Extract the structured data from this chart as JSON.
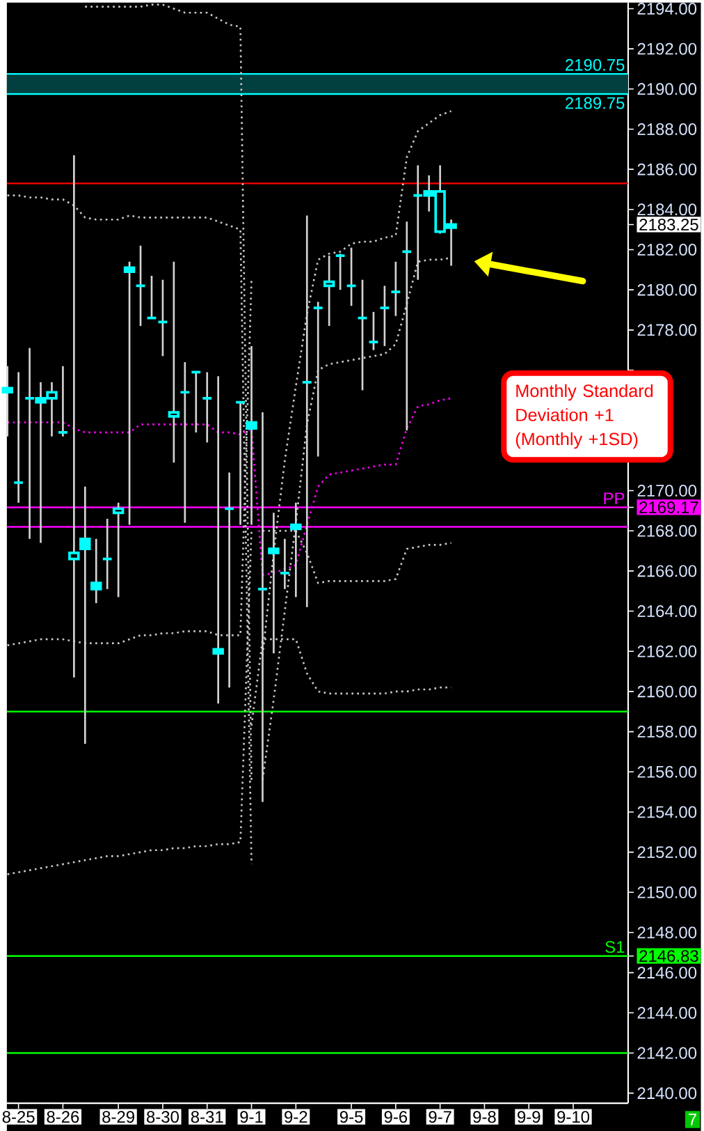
{
  "chart_data": {
    "type": "candlestick",
    "categories": [
      null,
      "8-25",
      null,
      null,
      null,
      "8-26",
      null,
      null,
      null,
      null,
      "8-29",
      null,
      null,
      null,
      "8-30",
      null,
      null,
      null,
      "8-31",
      null,
      null,
      null,
      "9-1",
      null,
      null,
      null,
      "9-2",
      null,
      null,
      null,
      null,
      "9-5",
      null,
      null,
      null,
      "9-6",
      null,
      null,
      null,
      "9-7",
      null,
      null,
      null,
      "9-8",
      null,
      null,
      null,
      "9-9",
      null,
      null,
      null,
      "9-10",
      null,
      null,
      null,
      null
    ],
    "ylim": [
      2139.5,
      2194.3
    ],
    "yticks": [
      {
        "value": 2140,
        "label": "2140.00"
      },
      {
        "value": 2142,
        "label": "2142.00"
      },
      {
        "value": 2144,
        "label": "2144.00"
      },
      {
        "value": 2146,
        "label": "2146.00"
      },
      {
        "value": 2146.83,
        "label": "2146.83"
      },
      {
        "value": 2148,
        "label": "2148.00"
      },
      {
        "value": 2150,
        "label": "2150.00"
      },
      {
        "value": 2152,
        "label": "2152.00"
      },
      {
        "value": 2154,
        "label": "2154.00"
      },
      {
        "value": 2156,
        "label": "2156.00"
      },
      {
        "value": 2158,
        "label": "2158.00"
      },
      {
        "value": 2160,
        "label": "2160.00"
      },
      {
        "value": 2162,
        "label": "2162.00"
      },
      {
        "value": 2164,
        "label": "2164.00"
      },
      {
        "value": 2166,
        "label": "2166.00"
      },
      {
        "value": 2168,
        "label": "2168.00"
      },
      {
        "value": 2169.17,
        "label": "2169.17"
      },
      {
        "value": 2170,
        "label": "2170.00"
      },
      {
        "value": 2172,
        "label": null
      },
      {
        "value": 2174,
        "label": null
      },
      {
        "value": 2176,
        "label": null
      },
      {
        "value": 2178,
        "label": "2178.00"
      },
      {
        "value": 2180,
        "label": "2180.00"
      },
      {
        "value": 2182,
        "label": "2182.00"
      },
      {
        "value": 2183.25,
        "label": "2183.25"
      },
      {
        "value": 2184,
        "label": "2184.00"
      },
      {
        "value": 2186,
        "label": "2186.00"
      },
      {
        "value": 2188,
        "label": "2188.00"
      },
      {
        "value": 2190,
        "label": "2190.00"
      },
      {
        "value": 2192,
        "label": "2192.00"
      },
      {
        "value": 2194,
        "label": "2194.00"
      }
    ],
    "series": [
      {
        "type": "line",
        "color": "#c8c8c8",
        "line_style": "dotted",
        "values": [
          null,
          null,
          null,
          null,
          null,
          null,
          null,
          2194.1,
          2194.1,
          2194.1,
          2194.1,
          2194.1,
          2194.1,
          2194.2,
          2194.2,
          2194.0,
          2193.8,
          2193.8,
          2193.8,
          2193.5,
          2193.2,
          2193.1,
          2155.6,
          null,
          null,
          null,
          null,
          null,
          null,
          null,
          null,
          null,
          null,
          null,
          null,
          null,
          null,
          null,
          null,
          null,
          null,
          null,
          null,
          null,
          null,
          null,
          null,
          null,
          null,
          null,
          null,
          null,
          null,
          null,
          null,
          null
        ]
      },
      {
        "type": "line",
        "color": "#c8c8c8",
        "line_style": "dotted",
        "values": [
          2184.7,
          2184.7,
          2184.6,
          2184.6,
          2184.5,
          2184.5,
          2184.2,
          2183.6,
          2183.5,
          2183.5,
          2183.5,
          2183.7,
          2183.6,
          2183.6,
          2183.6,
          2183.6,
          2183.6,
          2183.6,
          2183.6,
          2183.4,
          2183.2,
          2183.0,
          2151.4,
          null,
          null,
          null,
          null,
          null,
          null,
          null,
          null,
          null,
          null,
          null,
          null,
          null,
          null,
          null,
          null,
          null,
          null,
          null,
          null,
          null,
          null,
          null,
          null,
          null,
          null,
          null,
          null,
          null,
          null,
          null,
          null,
          null
        ]
      },
      {
        "type": "line",
        "color": "#c8c8c8",
        "line_style": "dotted",
        "values": [
          2162.3,
          2162.4,
          2162.5,
          2162.6,
          2162.6,
          2162.6,
          2162.5,
          2162.4,
          2162.4,
          2162.4,
          2162.4,
          2162.6,
          2162.8,
          2162.8,
          2162.9,
          2162.9,
          2163.0,
          2163.0,
          2163.0,
          2162.8,
          2162.8,
          2162.8,
          2180.5,
          null,
          null,
          null,
          null,
          null,
          null,
          null,
          null,
          null,
          null,
          null,
          null,
          null,
          null,
          null,
          null,
          null,
          null,
          null,
          null,
          null,
          null,
          null,
          null,
          null,
          null,
          null,
          null,
          null,
          null,
          null,
          null,
          null
        ]
      },
      {
        "type": "line",
        "color": "#c8c8c8",
        "line_style": "dotted",
        "values": [
          2150.9,
          2151.0,
          2151.1,
          2151.2,
          2151.3,
          2151.4,
          2151.5,
          2151.6,
          2151.7,
          2151.8,
          2151.8,
          2151.9,
          2152.0,
          2152.1,
          2152.1,
          2152.2,
          2152.2,
          2152.3,
          2152.3,
          2152.4,
          2152.4,
          2152.5,
          2168.0,
          null,
          null,
          null,
          null,
          null,
          null,
          null,
          null,
          null,
          null,
          null,
          null,
          null,
          null,
          null,
          null,
          null,
          null,
          null,
          null,
          null,
          null,
          null,
          null,
          null,
          null,
          null,
          null,
          null,
          null,
          null,
          null,
          null
        ]
      },
      {
        "type": "line",
        "color": "#c8c8c8",
        "line_style": "dotted",
        "values": [
          null,
          null,
          null,
          null,
          null,
          null,
          null,
          null,
          null,
          null,
          null,
          null,
          null,
          null,
          null,
          null,
          null,
          null,
          null,
          null,
          null,
          null,
          null,
          2161.8,
          2166.9,
          2171.5,
          2175.2,
          2178.8,
          2181.5,
          2181.8,
          2181.9,
          2182.3,
          2182.4,
          2182.4,
          2182.6,
          2182.7,
          2186.6,
          2187.9,
          2188.3,
          2188.7,
          2188.9,
          null,
          null,
          null,
          null,
          null,
          null,
          null,
          null,
          null,
          null,
          null,
          null,
          null,
          null,
          null
        ]
      },
      {
        "type": "line",
        "color": "#c8c8c8",
        "line_style": "dotted",
        "values": [
          null,
          null,
          null,
          null,
          null,
          null,
          null,
          null,
          null,
          null,
          null,
          null,
          null,
          null,
          null,
          null,
          null,
          null,
          null,
          null,
          null,
          null,
          null,
          2155.6,
          2159.6,
          2164.0,
          2168.4,
          2173.3,
          2176.0,
          2176.3,
          2176.4,
          2176.5,
          2176.6,
          2176.7,
          2176.8,
          2177.3,
          2179.3,
          2181.4,
          2181.5,
          2181.5,
          2181.6,
          null,
          null,
          null,
          null,
          null,
          null,
          null,
          null,
          null,
          null,
          null,
          null,
          null,
          null,
          null
        ]
      },
      {
        "type": "line",
        "color": "#c8c8c8",
        "line_style": "dotted",
        "values": [
          null,
          null,
          null,
          null,
          null,
          null,
          null,
          null,
          null,
          null,
          null,
          null,
          null,
          null,
          null,
          null,
          null,
          null,
          null,
          null,
          null,
          null,
          null,
          2168.0,
          2168.0,
          2168.0,
          2168.0,
          2166.9,
          2165.4,
          2165.5,
          2165.5,
          2165.5,
          2165.5,
          2165.5,
          2165.5,
          2165.6,
          2167.1,
          2167.2,
          2167.3,
          2167.3,
          2167.4,
          null,
          null,
          null,
          null,
          null,
          null,
          null,
          null,
          null,
          null,
          null,
          null,
          null,
          null,
          null
        ]
      },
      {
        "type": "line",
        "color": "#c8c8c8",
        "line_style": "dotted",
        "values": [
          null,
          null,
          null,
          null,
          null,
          null,
          null,
          null,
          null,
          null,
          null,
          null,
          null,
          null,
          null,
          null,
          null,
          null,
          null,
          null,
          null,
          null,
          2158.3,
          2162.6,
          2162.6,
          2162.6,
          2162.6,
          2160.9,
          2160.0,
          2159.9,
          2159.9,
          2159.9,
          2159.9,
          2159.9,
          2159.9,
          2160.0,
          2160.0,
          2160.1,
          2160.1,
          2160.2,
          2160.2,
          null,
          null,
          null,
          null,
          null,
          null,
          null,
          null,
          null,
          null,
          null,
          null,
          null,
          null,
          null
        ]
      },
      {
        "type": "line",
        "color": "#ff00ff",
        "line_style": "dotted",
        "values": [
          2173.4,
          2173.4,
          2173.4,
          2173.4,
          2173.4,
          2173.4,
          2173.1,
          2172.9,
          2172.9,
          2172.9,
          2172.9,
          2172.9,
          2173.3,
          2173.3,
          2173.3,
          2173.3,
          2173.3,
          2173.3,
          2173.3,
          2172.9,
          2172.9,
          2172.8,
          2173.1,
          2165.8,
          2165.9,
          2166.1,
          2166.3,
          2168.3,
          2170.2,
          2170.8,
          2170.9,
          2171.0,
          2171.1,
          2171.2,
          2171.3,
          2171.3,
          2173.1,
          2174.2,
          2174.3,
          2174.5,
          2174.6,
          null,
          null,
          null,
          null,
          null,
          null,
          null,
          null,
          null,
          null,
          null,
          null,
          null,
          null,
          null
        ]
      },
      {
        "type": "candlestick",
        "color": "#00ffff",
        "ohlc": [
          [
            2174.9,
            2176.2,
            2172.7,
            2175.1
          ],
          [
            2170.4,
            2175.9,
            2169.4,
            2170.4
          ],
          [
            2174.6,
            2177.1,
            2167.6,
            2174.6
          ],
          [
            2174.4,
            2175.4,
            2167.4,
            2174.6
          ],
          [
            2174.9,
            2175.4,
            2172.7,
            2174.6
          ],
          [
            2172.9,
            2176.2,
            2172.7,
            2172.9
          ],
          [
            2166.9,
            2186.7,
            2160.7,
            2166.6
          ],
          [
            2167.1,
            2170.2,
            2157.4,
            2167.6
          ],
          [
            2165.1,
            2167.6,
            2164.4,
            2165.4
          ],
          [
            2166.6,
            2168.6,
            2165.1,
            2166.6
          ],
          [
            2169.1,
            2169.4,
            2164.7,
            2168.9
          ],
          [
            2180.9,
            2181.4,
            2168.3,
            2181.1
          ],
          [
            2180.2,
            2182.2,
            2178.2,
            2180.2
          ],
          [
            2178.6,
            2180.7,
            2178.6,
            2178.6
          ],
          [
            2178.4,
            2180.5,
            2176.7,
            2178.4
          ],
          [
            2173.9,
            2181.4,
            2171.4,
            2173.7
          ],
          [
            2174.9,
            2176.4,
            2168.4,
            2174.9
          ],
          [
            2175.9,
            2175.9,
            2172.9,
            2175.9
          ],
          [
            2174.6,
            2175.9,
            2172.4,
            2174.6
          ],
          [
            2161.9,
            2175.7,
            2159.4,
            2162.1
          ],
          [
            2169.1,
            2170.9,
            2160.2,
            2169.1
          ],
          [
            2174.4,
            2174.4,
            2168.3,
            2174.4
          ],
          [
            2173.1,
            2177.2,
            2168.3,
            2173.4
          ],
          [
            2165.1,
            2173.9,
            2154.5,
            2165.1
          ],
          [
            2166.9,
            2168.9,
            2161.9,
            2167.1
          ],
          [
            2165.9,
            2167.6,
            2165.1,
            2165.9
          ],
          [
            2168.1,
            2169.4,
            2164.7,
            2168.3
          ],
          [
            2175.4,
            2183.7,
            2164.2,
            2175.4
          ],
          [
            2179.1,
            2179.4,
            2171.7,
            2179.1
          ],
          [
            2180.4,
            2181.7,
            2178.2,
            2180.2
          ],
          [
            2181.7,
            2181.8,
            2180.0,
            2181.7
          ],
          [
            2180.2,
            2182.1,
            2179.2,
            2180.2
          ],
          [
            2178.6,
            2180.5,
            2175.0,
            2178.6
          ],
          [
            2177.4,
            2178.9,
            2177.0,
            2177.4
          ],
          [
            2179.1,
            2180.2,
            2177.2,
            2179.1
          ],
          [
            2179.9,
            2181.4,
            2178.7,
            2179.9
          ],
          [
            2181.9,
            2183.4,
            2173.0,
            2181.9
          ],
          [
            2184.7,
            2186.2,
            2180.5,
            2184.7
          ],
          [
            2184.7,
            2185.7,
            2183.9,
            2184.9
          ],
          [
            2184.9,
            2186.2,
            2182.8,
            2182.9
          ],
          [
            2183.1,
            2183.5,
            2181.2,
            2183.25
          ],
          null,
          null,
          null,
          null,
          null,
          null,
          null,
          null,
          null,
          null,
          null,
          null,
          null,
          null,
          null
        ]
      }
    ],
    "bands": [
      {
        "axis": "y",
        "from": 2189.75,
        "to": 2190.75,
        "color": "#024040"
      }
    ],
    "ref_lines": [
      {
        "axis": "y",
        "value": 2190.75,
        "label": "2190.75",
        "color": "#00ffff"
      },
      {
        "axis": "y",
        "value": 2189.75,
        "label": "2189.75",
        "color": "#00ffff"
      },
      {
        "axis": "y",
        "value": 2185.3,
        "color": "#ff0000"
      },
      {
        "axis": "y",
        "value": 2168.2,
        "color": "#ff00ff"
      },
      {
        "axis": "y",
        "value": 2169.17,
        "label": "PP",
        "color": "#ff00ff"
      },
      {
        "axis": "y",
        "value": 2159.0,
        "color": "#00ff00"
      },
      {
        "axis": "y",
        "value": 2146.83,
        "label": "S1",
        "color": "#00ff00"
      },
      {
        "axis": "y",
        "value": 2142.0,
        "color": "#00ff00"
      }
    ],
    "annotations": [
      "Monthly Standard Deviation +1 (Monthly +1SD)",
      "7"
    ]
  }
}
